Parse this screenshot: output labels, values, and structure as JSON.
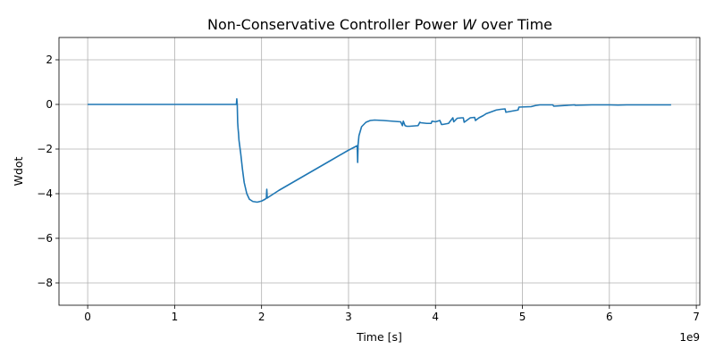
{
  "chart_data": {
    "type": "line",
    "title": "Non-Conservative Controller Power",
    "title_symbol": "W",
    "title_suffix": "over Time",
    "xlabel": "Time [s]",
    "ylabel": "Wdot",
    "x_offset_label": "1e9",
    "xlim": [
      -0.33,
      7.04
    ],
    "ylim": [
      -9.0,
      3.0
    ],
    "x_scale": 1000000000.0,
    "xticks": [
      0,
      1,
      2,
      3,
      4,
      5,
      6,
      7
    ],
    "xtick_labels": [
      "0",
      "1",
      "2",
      "3",
      "4",
      "5",
      "6",
      "7"
    ],
    "yticks": [
      2,
      0,
      -2,
      -4,
      -6,
      -8
    ],
    "ytick_labels": [
      "2",
      "0",
      "−2",
      "−4",
      "−6",
      "−8"
    ],
    "grid": true,
    "color": "#1f77b4",
    "series": [
      {
        "x": [
          0,
          0.5,
          1.0,
          1.5,
          1.71,
          1.715,
          1.72,
          1.725,
          1.73,
          1.735,
          1.74,
          1.76,
          1.78,
          1.8,
          1.83,
          1.86,
          1.9,
          1.95,
          2.0,
          2.04,
          2.055,
          2.06,
          2.065,
          2.07,
          2.2,
          2.4,
          2.6,
          2.8,
          3.0,
          3.1,
          3.105,
          3.11,
          3.12,
          3.15,
          3.2,
          3.25,
          3.3,
          3.4,
          3.5,
          3.6,
          3.62,
          3.63,
          3.65,
          3.67,
          3.7,
          3.8,
          3.82,
          3.83,
          3.9,
          3.95,
          3.96,
          4.0,
          4.05,
          4.07,
          4.08,
          4.15,
          4.2,
          4.21,
          4.25,
          4.3,
          4.32,
          4.33,
          4.4,
          4.45,
          4.46,
          4.5,
          4.55,
          4.57,
          4.58,
          4.7,
          4.75,
          4.8,
          4.81,
          4.85,
          4.95,
          4.96,
          5.1,
          5.15,
          5.2,
          5.35,
          5.36,
          5.6,
          5.61,
          5.8,
          6.0,
          6.1,
          6.2,
          6.71
        ],
        "y": [
          0,
          0,
          0,
          0,
          0,
          0.25,
          0,
          -0.8,
          -1.1,
          -1.3,
          -1.6,
          -2.2,
          -2.9,
          -3.5,
          -4.0,
          -4.25,
          -4.35,
          -4.38,
          -4.33,
          -4.25,
          -4.2,
          -3.8,
          -4.2,
          -4.18,
          -3.85,
          -3.4,
          -2.95,
          -2.5,
          -2.05,
          -1.85,
          -2.6,
          -1.8,
          -1.4,
          -1.0,
          -0.8,
          -0.72,
          -0.7,
          -0.72,
          -0.75,
          -0.78,
          -0.95,
          -0.75,
          -0.95,
          -0.98,
          -0.98,
          -0.95,
          -0.8,
          -0.82,
          -0.85,
          -0.85,
          -0.75,
          -0.78,
          -0.72,
          -0.9,
          -0.9,
          -0.85,
          -0.6,
          -0.78,
          -0.62,
          -0.6,
          -0.6,
          -0.8,
          -0.6,
          -0.58,
          -0.72,
          -0.6,
          -0.5,
          -0.45,
          -0.42,
          -0.25,
          -0.22,
          -0.2,
          -0.35,
          -0.32,
          -0.25,
          -0.12,
          -0.1,
          -0.05,
          -0.02,
          -0.02,
          -0.08,
          -0.02,
          -0.04,
          -0.02,
          -0.02,
          -0.03,
          -0.02,
          -0.02
        ]
      }
    ]
  }
}
